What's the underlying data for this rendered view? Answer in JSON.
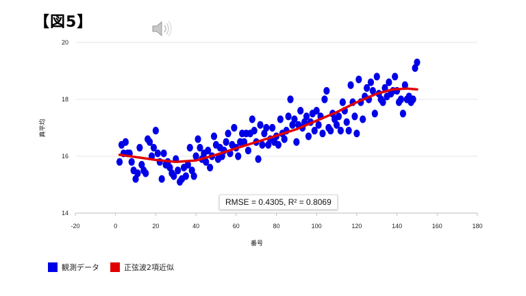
{
  "slide": {
    "title": "【図5】"
  },
  "icons": {
    "speaker": "speaker-icon"
  },
  "colors": {
    "observed": "#0000e6",
    "fit": "#e00000",
    "grid": "#e6e6e6"
  },
  "legend": {
    "observed": "観測データ",
    "fit": "正弦波2項近似"
  },
  "stats": {
    "text": "RMSE = 0.4305, R² = 0.8069"
  },
  "chart_data": {
    "type": "scatter",
    "xlabel": "番号",
    "ylabel": "真平均",
    "xlim": [
      -20,
      180
    ],
    "ylim": [
      14,
      20
    ],
    "xticks": [
      "-20",
      "0",
      "20",
      "40",
      "60",
      "80",
      "100",
      "120",
      "140",
      "160",
      "180"
    ],
    "yticks": [
      "14",
      "16",
      "18",
      "20"
    ],
    "grid": true,
    "legend_position": "bottom-left",
    "series": [
      {
        "name": "観測データ",
        "kind": "scatter",
        "points": [
          [
            2,
            15.8
          ],
          [
            3,
            16.4
          ],
          [
            4,
            16.1
          ],
          [
            5,
            16.5
          ],
          [
            6,
            16.1
          ],
          [
            7,
            16.1
          ],
          [
            8,
            15.8
          ],
          [
            9,
            15.5
          ],
          [
            10,
            15.2
          ],
          [
            11,
            15.4
          ],
          [
            12,
            16.3
          ],
          [
            13,
            15.7
          ],
          [
            14,
            15.5
          ],
          [
            15,
            15.4
          ],
          [
            16,
            16.6
          ],
          [
            17,
            16.5
          ],
          [
            18,
            16.0
          ],
          [
            19,
            16.3
          ],
          [
            20,
            16.9
          ],
          [
            21,
            16.1
          ],
          [
            22,
            15.8
          ],
          [
            23,
            15.2
          ],
          [
            24,
            16.1
          ],
          [
            25,
            15.7
          ],
          [
            26,
            15.8
          ],
          [
            27,
            15.6
          ],
          [
            28,
            15.4
          ],
          [
            29,
            15.3
          ],
          [
            30,
            15.9
          ],
          [
            31,
            15.5
          ],
          [
            32,
            15.1
          ],
          [
            33,
            15.2
          ],
          [
            34,
            15.6
          ],
          [
            35,
            15.3
          ],
          [
            36,
            15.7
          ],
          [
            37,
            16.3
          ],
          [
            38,
            15.5
          ],
          [
            39,
            15.3
          ],
          [
            40,
            16.0
          ],
          [
            41,
            16.6
          ],
          [
            42,
            16.3
          ],
          [
            43,
            15.9
          ],
          [
            44,
            16.1
          ],
          [
            45,
            15.8
          ],
          [
            46,
            16.2
          ],
          [
            47,
            15.6
          ],
          [
            48,
            16.0
          ],
          [
            49,
            16.7
          ],
          [
            50,
            16.4
          ],
          [
            51,
            15.9
          ],
          [
            52,
            16.3
          ],
          [
            53,
            16.0
          ],
          [
            54,
            16.2
          ],
          [
            55,
            16.5
          ],
          [
            56,
            16.8
          ],
          [
            57,
            16.1
          ],
          [
            58,
            16.4
          ],
          [
            59,
            17.0
          ],
          [
            60,
            16.3
          ],
          [
            61,
            16.0
          ],
          [
            62,
            16.5
          ],
          [
            63,
            16.8
          ],
          [
            64,
            16.5
          ],
          [
            65,
            16.8
          ],
          [
            66,
            16.2
          ],
          [
            67,
            16.8
          ],
          [
            68,
            17.3
          ],
          [
            69,
            16.9
          ],
          [
            70,
            16.5
          ],
          [
            71,
            15.9
          ],
          [
            72,
            17.1
          ],
          [
            73,
            16.4
          ],
          [
            74,
            16.8
          ],
          [
            75,
            17.0
          ],
          [
            76,
            16.4
          ],
          [
            77,
            16.6
          ],
          [
            78,
            17.0
          ],
          [
            79,
            16.5
          ],
          [
            80,
            16.7
          ],
          [
            81,
            16.4
          ],
          [
            82,
            17.3
          ],
          [
            83,
            16.8
          ],
          [
            84,
            16.6
          ],
          [
            85,
            16.9
          ],
          [
            86,
            17.4
          ],
          [
            87,
            18.0
          ],
          [
            88,
            17.1
          ],
          [
            89,
            17.3
          ],
          [
            90,
            16.5
          ],
          [
            91,
            17.1
          ],
          [
            92,
            17.6
          ],
          [
            93,
            17.0
          ],
          [
            94,
            17.2
          ],
          [
            95,
            17.4
          ],
          [
            96,
            16.7
          ],
          [
            97,
            17.2
          ],
          [
            98,
            17.5
          ],
          [
            99,
            16.9
          ],
          [
            100,
            17.6
          ],
          [
            101,
            17.1
          ],
          [
            102,
            17.4
          ],
          [
            103,
            16.8
          ],
          [
            104,
            18.0
          ],
          [
            105,
            18.3
          ],
          [
            106,
            17.0
          ],
          [
            107,
            16.9
          ],
          [
            108,
            17.5
          ],
          [
            109,
            17.3
          ],
          [
            110,
            17.1
          ],
          [
            111,
            17.4
          ],
          [
            112,
            16.9
          ],
          [
            113,
            17.9
          ],
          [
            114,
            17.6
          ],
          [
            115,
            17.2
          ],
          [
            116,
            16.9
          ],
          [
            117,
            18.5
          ],
          [
            118,
            17.9
          ],
          [
            119,
            17.4
          ],
          [
            120,
            16.8
          ],
          [
            121,
            18.7
          ],
          [
            122,
            17.9
          ],
          [
            123,
            17.3
          ],
          [
            124,
            18.1
          ],
          [
            125,
            18.4
          ],
          [
            126,
            18.0
          ],
          [
            127,
            18.6
          ],
          [
            128,
            18.3
          ],
          [
            129,
            17.5
          ],
          [
            130,
            18.8
          ],
          [
            131,
            18.2
          ],
          [
            132,
            18.0
          ],
          [
            133,
            17.9
          ],
          [
            134,
            18.4
          ],
          [
            135,
            18.1
          ],
          [
            136,
            18.6
          ],
          [
            137,
            18.2
          ],
          [
            138,
            18.3
          ],
          [
            139,
            18.8
          ],
          [
            140,
            18.3
          ],
          [
            141,
            17.9
          ],
          [
            142,
            18.0
          ],
          [
            143,
            17.5
          ],
          [
            144,
            18.5
          ],
          [
            145,
            18.0
          ],
          [
            146,
            18.1
          ],
          [
            147,
            17.9
          ],
          [
            148,
            18.0
          ],
          [
            149,
            19.1
          ],
          [
            150,
            19.3
          ]
        ]
      },
      {
        "name": "正弦波2項近似",
        "kind": "line",
        "points": [
          [
            2,
            16.05
          ],
          [
            10,
            15.97
          ],
          [
            20,
            15.87
          ],
          [
            30,
            15.8
          ],
          [
            40,
            15.85
          ],
          [
            50,
            16.05
          ],
          [
            60,
            16.28
          ],
          [
            70,
            16.5
          ],
          [
            80,
            16.72
          ],
          [
            90,
            16.95
          ],
          [
            100,
            17.25
          ],
          [
            110,
            17.55
          ],
          [
            120,
            17.9
          ],
          [
            130,
            18.2
          ],
          [
            138,
            18.35
          ],
          [
            145,
            18.38
          ],
          [
            150,
            18.35
          ]
        ]
      }
    ]
  }
}
